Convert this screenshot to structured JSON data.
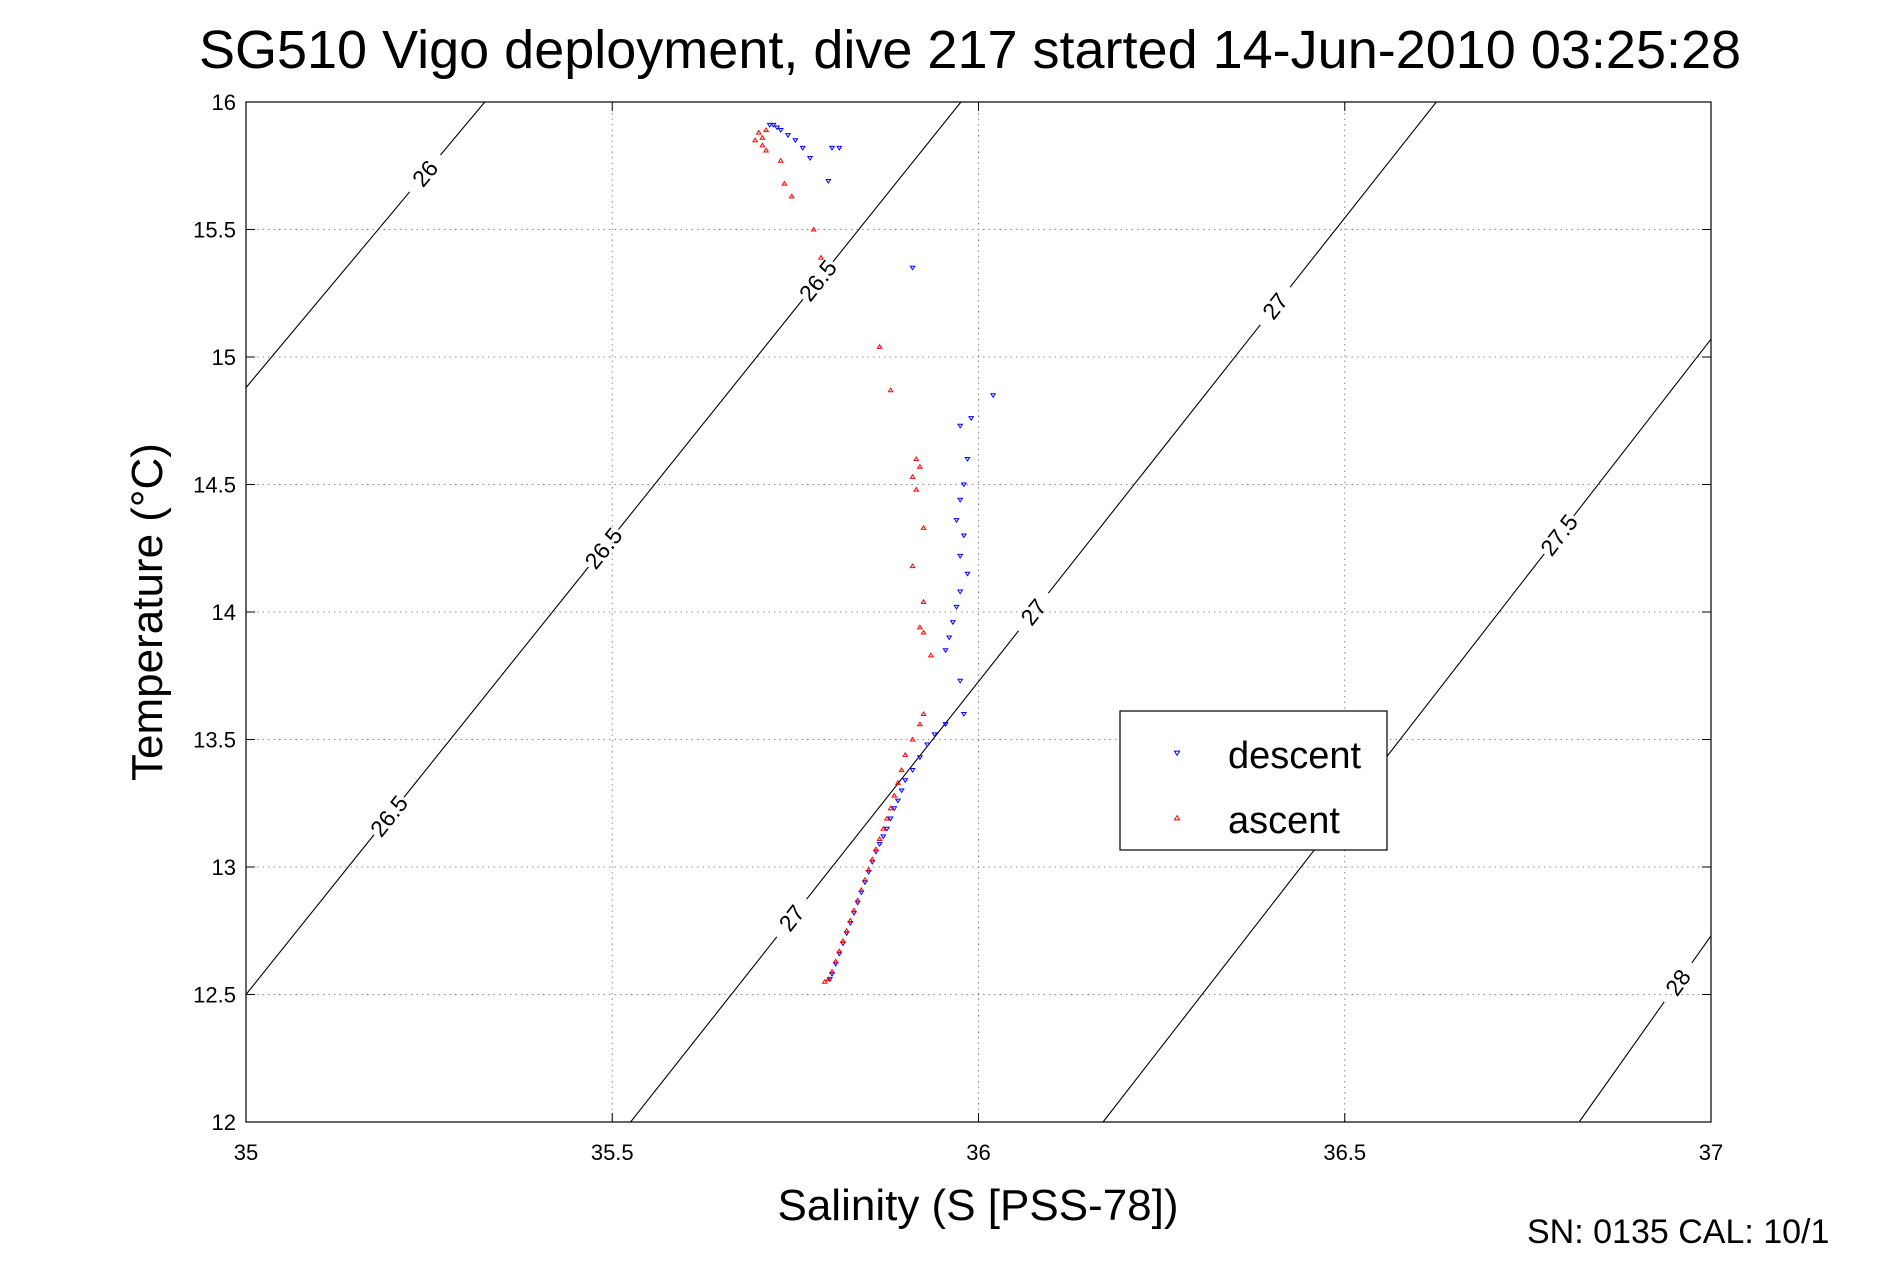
{
  "chart_data": {
    "type": "scatter",
    "title": "SG510 Vigo deployment, dive 217 started 14-Jun-2010 03:25:28",
    "xlabel": "Salinity (S [PSS-78])",
    "ylabel": "Temperature (°C)",
    "xlim": [
      35,
      37
    ],
    "ylim": [
      12,
      16
    ],
    "xticks": [
      "35",
      "35.5",
      "36",
      "36.5",
      "37"
    ],
    "yticks": [
      "12",
      "12.5",
      "13",
      "13.5",
      "14",
      "14.5",
      "15",
      "15.5",
      "16"
    ],
    "grid": true,
    "legend_position": "right-center",
    "footer": "SN: 0135  CAL: 10/1",
    "density_contours": [
      {
        "sigma": 26,
        "points": [
          [
            35.0,
            14.88
          ],
          [
            35.326,
            16.0
          ]
        ],
        "labels": [
          "26"
        ]
      },
      {
        "sigma": 26.5,
        "points": [
          [
            35.0,
            12.5
          ],
          [
            35.976,
            16.0
          ]
        ],
        "labels": [
          "26.5",
          "26.5",
          "26.5"
        ]
      },
      {
        "sigma": 27,
        "points": [
          [
            35.525,
            12.0
          ],
          [
            36.625,
            16.0
          ]
        ],
        "labels": [
          "27",
          "27",
          "27"
        ]
      },
      {
        "sigma": 27.5,
        "points": [
          [
            36.17,
            12.0
          ],
          [
            37.0,
            15.07
          ]
        ],
        "labels": [
          "27.5"
        ]
      },
      {
        "sigma": 28,
        "points": [
          [
            36.82,
            12.0
          ],
          [
            37.0,
            12.73
          ]
        ],
        "labels": [
          "28"
        ]
      }
    ],
    "series": [
      {
        "name": "descent",
        "color": "#0000ff",
        "marker": "triangle-down",
        "points": [
          [
            35.715,
            15.91
          ],
          [
            35.72,
            15.91
          ],
          [
            35.725,
            15.9
          ],
          [
            35.73,
            15.89
          ],
          [
            35.74,
            15.87
          ],
          [
            35.75,
            15.85
          ],
          [
            35.76,
            15.82
          ],
          [
            35.77,
            15.78
          ],
          [
            35.8,
            15.82
          ],
          [
            35.81,
            15.82
          ],
          [
            35.795,
            15.69
          ],
          [
            35.91,
            15.35
          ],
          [
            36.02,
            14.85
          ],
          [
            35.99,
            14.76
          ],
          [
            35.975,
            14.73
          ],
          [
            35.985,
            14.6
          ],
          [
            35.98,
            14.5
          ],
          [
            35.975,
            14.44
          ],
          [
            35.97,
            14.36
          ],
          [
            35.98,
            14.3
          ],
          [
            35.975,
            14.22
          ],
          [
            35.985,
            14.15
          ],
          [
            35.975,
            14.08
          ],
          [
            35.97,
            14.02
          ],
          [
            35.965,
            13.96
          ],
          [
            35.96,
            13.9
          ],
          [
            35.955,
            13.85
          ],
          [
            35.975,
            13.73
          ],
          [
            35.98,
            13.6
          ],
          [
            35.955,
            13.56
          ],
          [
            35.94,
            13.52
          ],
          [
            35.93,
            13.48
          ],
          [
            35.92,
            13.43
          ],
          [
            35.91,
            13.38
          ],
          [
            35.9,
            13.34
          ],
          [
            35.895,
            13.3
          ],
          [
            35.89,
            13.26
          ],
          [
            35.885,
            13.23
          ],
          [
            35.88,
            13.19
          ],
          [
            35.875,
            13.15
          ],
          [
            35.87,
            13.12
          ],
          [
            35.865,
            13.09
          ],
          [
            35.86,
            13.06
          ],
          [
            35.855,
            13.02
          ],
          [
            35.85,
            12.98
          ],
          [
            35.845,
            12.94
          ],
          [
            35.84,
            12.9
          ],
          [
            35.835,
            12.86
          ],
          [
            35.83,
            12.82
          ],
          [
            35.825,
            12.78
          ],
          [
            35.82,
            12.74
          ],
          [
            35.815,
            12.7
          ],
          [
            35.81,
            12.66
          ],
          [
            35.805,
            12.62
          ],
          [
            35.8,
            12.58
          ],
          [
            35.797,
            12.56
          ]
        ]
      },
      {
        "name": "ascent",
        "color": "#ff0000",
        "marker": "triangle-up",
        "points": [
          [
            35.71,
            15.89
          ],
          [
            35.7,
            15.88
          ],
          [
            35.705,
            15.86
          ],
          [
            35.695,
            15.85
          ],
          [
            35.705,
            15.83
          ],
          [
            35.71,
            15.81
          ],
          [
            35.73,
            15.77
          ],
          [
            35.735,
            15.68
          ],
          [
            35.745,
            15.63
          ],
          [
            35.775,
            15.5
          ],
          [
            35.785,
            15.39
          ],
          [
            35.865,
            15.04
          ],
          [
            35.88,
            14.87
          ],
          [
            35.915,
            14.6
          ],
          [
            35.92,
            14.57
          ],
          [
            35.91,
            14.53
          ],
          [
            35.915,
            14.48
          ],
          [
            35.925,
            14.33
          ],
          [
            35.91,
            14.18
          ],
          [
            35.925,
            14.04
          ],
          [
            35.92,
            13.94
          ],
          [
            35.925,
            13.92
          ],
          [
            35.935,
            13.83
          ],
          [
            35.925,
            13.6
          ],
          [
            35.92,
            13.56
          ],
          [
            35.91,
            13.5
          ],
          [
            35.9,
            13.44
          ],
          [
            35.895,
            13.38
          ],
          [
            35.89,
            13.33
          ],
          [
            35.885,
            13.28
          ],
          [
            35.88,
            13.23
          ],
          [
            35.875,
            13.19
          ],
          [
            35.87,
            13.15
          ],
          [
            35.865,
            13.11
          ],
          [
            35.86,
            13.07
          ],
          [
            35.855,
            13.03
          ],
          [
            35.85,
            12.99
          ],
          [
            35.845,
            12.95
          ],
          [
            35.84,
            12.91
          ],
          [
            35.835,
            12.87
          ],
          [
            35.83,
            12.83
          ],
          [
            35.825,
            12.79
          ],
          [
            35.82,
            12.75
          ],
          [
            35.815,
            12.71
          ],
          [
            35.81,
            12.67
          ],
          [
            35.805,
            12.63
          ],
          [
            35.8,
            12.59
          ],
          [
            35.795,
            12.56
          ],
          [
            35.79,
            12.55
          ]
        ]
      }
    ]
  }
}
